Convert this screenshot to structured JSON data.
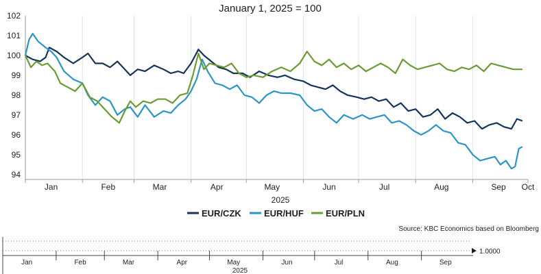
{
  "chart_data": {
    "type": "line",
    "title": "January 1, 2025 = 100",
    "xlabel": "2025",
    "ylabel": "",
    "x_range": [
      "2025-01-01",
      "2025-09-30"
    ],
    "ylim": [
      93.75,
      102
    ],
    "y_ticks": [
      94,
      95,
      96,
      97,
      98,
      99,
      100,
      101,
      102
    ],
    "x_ticks": [
      {
        "label": "Jan",
        "date": "2025-01-15"
      },
      {
        "label": "Feb",
        "date": "2025-02-15"
      },
      {
        "label": "Mar",
        "date": "2025-03-15"
      },
      {
        "label": "Apr",
        "date": "2025-04-15"
      },
      {
        "label": "May",
        "date": "2025-05-15"
      },
      {
        "label": "Jun",
        "date": "2025-06-15"
      },
      {
        "label": "Jul",
        "date": "2025-07-15"
      },
      {
        "label": "Aug",
        "date": "2025-08-15"
      },
      {
        "label": "Sep",
        "date": "2025-09-15"
      },
      {
        "label": "Oct",
        "date": "2025-10-01"
      }
    ],
    "grid": "vertical",
    "legend_position": "bottom",
    "series": [
      {
        "name": "EUR/CZK",
        "color": "#14335a",
        "points": [
          [
            "2025-01-01",
            100.0
          ],
          [
            "2025-01-05",
            99.8
          ],
          [
            "2025-01-09",
            99.7
          ],
          [
            "2025-01-12",
            99.9
          ],
          [
            "2025-01-14",
            100.4
          ],
          [
            "2025-01-18",
            100.2
          ],
          [
            "2025-01-22",
            99.9
          ],
          [
            "2025-01-27",
            99.6
          ],
          [
            "2025-02-01",
            99.9
          ],
          [
            "2025-02-04",
            100.1
          ],
          [
            "2025-02-08",
            99.6
          ],
          [
            "2025-02-12",
            99.6
          ],
          [
            "2025-02-16",
            99.4
          ],
          [
            "2025-02-20",
            99.7
          ],
          [
            "2025-02-24",
            99.3
          ],
          [
            "2025-02-27",
            99.0
          ],
          [
            "2025-03-03",
            99.3
          ],
          [
            "2025-03-07",
            99.2
          ],
          [
            "2025-03-12",
            99.5
          ],
          [
            "2025-03-17",
            99.3
          ],
          [
            "2025-03-21",
            99.1
          ],
          [
            "2025-03-25",
            99.2
          ],
          [
            "2025-03-28",
            99.1
          ],
          [
            "2025-04-01",
            99.6
          ],
          [
            "2025-04-05",
            100.3
          ],
          [
            "2025-04-08",
            100.0
          ],
          [
            "2025-04-12",
            99.7
          ],
          [
            "2025-04-16",
            99.4
          ],
          [
            "2025-04-20",
            99.3
          ],
          [
            "2025-04-24",
            99.1
          ],
          [
            "2025-04-29",
            99.1
          ],
          [
            "2025-05-03",
            98.9
          ],
          [
            "2025-05-08",
            99.2
          ],
          [
            "2025-05-13",
            99.0
          ],
          [
            "2025-05-18",
            98.9
          ],
          [
            "2025-05-22",
            99.0
          ],
          [
            "2025-05-27",
            98.8
          ],
          [
            "2025-06-01",
            98.7
          ],
          [
            "2025-06-05",
            98.5
          ],
          [
            "2025-06-09",
            98.4
          ],
          [
            "2025-06-13",
            98.3
          ],
          [
            "2025-06-17",
            98.5
          ],
          [
            "2025-06-21",
            98.2
          ],
          [
            "2025-06-25",
            98.0
          ],
          [
            "2025-06-30",
            97.9
          ],
          [
            "2025-07-04",
            97.8
          ],
          [
            "2025-07-08",
            97.9
          ],
          [
            "2025-07-12",
            97.7
          ],
          [
            "2025-07-16",
            97.8
          ],
          [
            "2025-07-20",
            97.4
          ],
          [
            "2025-07-24",
            97.6
          ],
          [
            "2025-07-28",
            97.2
          ],
          [
            "2025-08-01",
            97.3
          ],
          [
            "2025-08-05",
            96.9
          ],
          [
            "2025-08-09",
            97.0
          ],
          [
            "2025-08-13",
            97.3
          ],
          [
            "2025-08-17",
            96.8
          ],
          [
            "2025-08-21",
            97.1
          ],
          [
            "2025-08-25",
            96.9
          ],
          [
            "2025-08-29",
            96.6
          ],
          [
            "2025-09-02",
            96.7
          ],
          [
            "2025-09-06",
            96.3
          ],
          [
            "2025-09-10",
            96.5
          ],
          [
            "2025-09-14",
            96.6
          ],
          [
            "2025-09-18",
            96.4
          ],
          [
            "2025-09-22",
            96.3
          ],
          [
            "2025-09-25",
            96.8
          ],
          [
            "2025-09-28",
            96.7
          ]
        ]
      },
      {
        "name": "EUR/HUF",
        "color": "#2a94c5",
        "points": [
          [
            "2025-01-01",
            100.0
          ],
          [
            "2025-01-03",
            100.8
          ],
          [
            "2025-01-05",
            101.1
          ],
          [
            "2025-01-08",
            100.7
          ],
          [
            "2025-01-12",
            100.4
          ],
          [
            "2025-01-15",
            100.2
          ],
          [
            "2025-01-18",
            99.9
          ],
          [
            "2025-01-22",
            99.2
          ],
          [
            "2025-01-27",
            98.8
          ],
          [
            "2025-02-01",
            98.6
          ],
          [
            "2025-02-04",
            98.0
          ],
          [
            "2025-02-08",
            97.5
          ],
          [
            "2025-02-12",
            97.9
          ],
          [
            "2025-02-16",
            97.7
          ],
          [
            "2025-02-20",
            97.0
          ],
          [
            "2025-02-24",
            97.3
          ],
          [
            "2025-02-27",
            97.4
          ],
          [
            "2025-03-03",
            96.9
          ],
          [
            "2025-03-07",
            97.5
          ],
          [
            "2025-03-12",
            96.9
          ],
          [
            "2025-03-17",
            97.2
          ],
          [
            "2025-03-21",
            97.1
          ],
          [
            "2025-03-25",
            97.5
          ],
          [
            "2025-03-29",
            97.8
          ],
          [
            "2025-04-01",
            98.2
          ],
          [
            "2025-04-04",
            98.8
          ],
          [
            "2025-04-07",
            99.8
          ],
          [
            "2025-04-10",
            99.2
          ],
          [
            "2025-04-14",
            98.6
          ],
          [
            "2025-04-18",
            98.5
          ],
          [
            "2025-04-22",
            98.3
          ],
          [
            "2025-04-26",
            98.5
          ],
          [
            "2025-04-30",
            98.0
          ],
          [
            "2025-05-04",
            97.9
          ],
          [
            "2025-05-08",
            97.6
          ],
          [
            "2025-05-12",
            98.0
          ],
          [
            "2025-05-16",
            98.2
          ],
          [
            "2025-05-20",
            98.1
          ],
          [
            "2025-05-25",
            98.1
          ],
          [
            "2025-05-30",
            98.0
          ],
          [
            "2025-06-03",
            97.5
          ],
          [
            "2025-06-07",
            97.2
          ],
          [
            "2025-06-11",
            97.3
          ],
          [
            "2025-06-15",
            96.9
          ],
          [
            "2025-06-19",
            96.6
          ],
          [
            "2025-06-23",
            97.0
          ],
          [
            "2025-06-28",
            96.8
          ],
          [
            "2025-07-03",
            97.0
          ],
          [
            "2025-07-07",
            96.8
          ],
          [
            "2025-07-11",
            96.9
          ],
          [
            "2025-07-15",
            97.0
          ],
          [
            "2025-07-19",
            96.6
          ],
          [
            "2025-07-23",
            96.7
          ],
          [
            "2025-07-27",
            96.5
          ],
          [
            "2025-07-31",
            96.2
          ],
          [
            "2025-08-04",
            96.0
          ],
          [
            "2025-08-08",
            96.2
          ],
          [
            "2025-08-12",
            96.5
          ],
          [
            "2025-08-16",
            96.2
          ],
          [
            "2025-08-20",
            96.1
          ],
          [
            "2025-08-24",
            95.6
          ],
          [
            "2025-08-28",
            95.5
          ],
          [
            "2025-09-01",
            95.0
          ],
          [
            "2025-09-05",
            94.7
          ],
          [
            "2025-09-09",
            94.8
          ],
          [
            "2025-09-13",
            94.9
          ],
          [
            "2025-09-16",
            94.5
          ],
          [
            "2025-09-19",
            94.7
          ],
          [
            "2025-09-22",
            94.3
          ],
          [
            "2025-09-24",
            94.4
          ],
          [
            "2025-09-26",
            95.3
          ],
          [
            "2025-09-28",
            95.4
          ]
        ]
      },
      {
        "name": "EUR/PLN",
        "color": "#6a9b32",
        "points": [
          [
            "2025-01-01",
            100.0
          ],
          [
            "2025-01-04",
            99.4
          ],
          [
            "2025-01-07",
            99.7
          ],
          [
            "2025-01-10",
            99.5
          ],
          [
            "2025-01-13",
            99.6
          ],
          [
            "2025-01-17",
            99.2
          ],
          [
            "2025-01-20",
            98.6
          ],
          [
            "2025-01-24",
            98.4
          ],
          [
            "2025-01-28",
            98.2
          ],
          [
            "2025-02-01",
            98.6
          ],
          [
            "2025-02-05",
            97.9
          ],
          [
            "2025-02-09",
            97.7
          ],
          [
            "2025-02-13",
            97.3
          ],
          [
            "2025-02-17",
            96.9
          ],
          [
            "2025-02-21",
            96.6
          ],
          [
            "2025-02-24",
            97.2
          ],
          [
            "2025-02-27",
            97.7
          ],
          [
            "2025-03-02",
            97.4
          ],
          [
            "2025-03-06",
            97.7
          ],
          [
            "2025-03-10",
            97.6
          ],
          [
            "2025-03-14",
            97.8
          ],
          [
            "2025-03-18",
            97.8
          ],
          [
            "2025-03-22",
            97.6
          ],
          [
            "2025-03-26",
            98.0
          ],
          [
            "2025-03-30",
            98.1
          ],
          [
            "2025-04-02",
            99.0
          ],
          [
            "2025-04-05",
            100.1
          ],
          [
            "2025-04-08",
            99.3
          ],
          [
            "2025-04-11",
            99.6
          ],
          [
            "2025-04-15",
            99.5
          ],
          [
            "2025-04-19",
            99.4
          ],
          [
            "2025-04-23",
            99.6
          ],
          [
            "2025-04-27",
            99.1
          ],
          [
            "2025-05-01",
            98.9
          ],
          [
            "2025-05-05",
            99.0
          ],
          [
            "2025-05-10",
            98.9
          ],
          [
            "2025-05-15",
            99.2
          ],
          [
            "2025-05-20",
            99.4
          ],
          [
            "2025-05-25",
            99.2
          ],
          [
            "2025-05-30",
            99.6
          ],
          [
            "2025-06-03",
            100.2
          ],
          [
            "2025-06-07",
            99.7
          ],
          [
            "2025-06-11",
            99.5
          ],
          [
            "2025-06-15",
            99.8
          ],
          [
            "2025-06-19",
            99.4
          ],
          [
            "2025-06-23",
            99.6
          ],
          [
            "2025-06-27",
            99.3
          ],
          [
            "2025-07-01",
            99.5
          ],
          [
            "2025-07-05",
            99.2
          ],
          [
            "2025-07-09",
            99.4
          ],
          [
            "2025-07-13",
            99.6
          ],
          [
            "2025-07-17",
            99.4
          ],
          [
            "2025-07-21",
            99.1
          ],
          [
            "2025-07-25",
            99.8
          ],
          [
            "2025-07-29",
            99.5
          ],
          [
            "2025-08-02",
            99.3
          ],
          [
            "2025-08-06",
            99.4
          ],
          [
            "2025-08-10",
            99.5
          ],
          [
            "2025-08-14",
            99.6
          ],
          [
            "2025-08-18",
            99.3
          ],
          [
            "2025-08-22",
            99.2
          ],
          [
            "2025-08-26",
            99.4
          ],
          [
            "2025-08-30",
            99.3
          ],
          [
            "2025-09-03",
            99.5
          ],
          [
            "2025-09-07",
            99.2
          ],
          [
            "2025-09-11",
            99.6
          ],
          [
            "2025-09-15",
            99.5
          ],
          [
            "2025-09-19",
            99.4
          ],
          [
            "2025-09-23",
            99.3
          ],
          [
            "2025-09-28",
            99.3
          ]
        ]
      }
    ]
  },
  "source": "Source: KBC Economics based on Bloomberg",
  "navigator": {
    "month_labels": [
      "Jan",
      "Feb",
      "Mar",
      "Apr",
      "May",
      "Jun",
      "Jul",
      "Aug",
      "Sep"
    ],
    "year_label": "2025",
    "value_label": "1.0000"
  }
}
